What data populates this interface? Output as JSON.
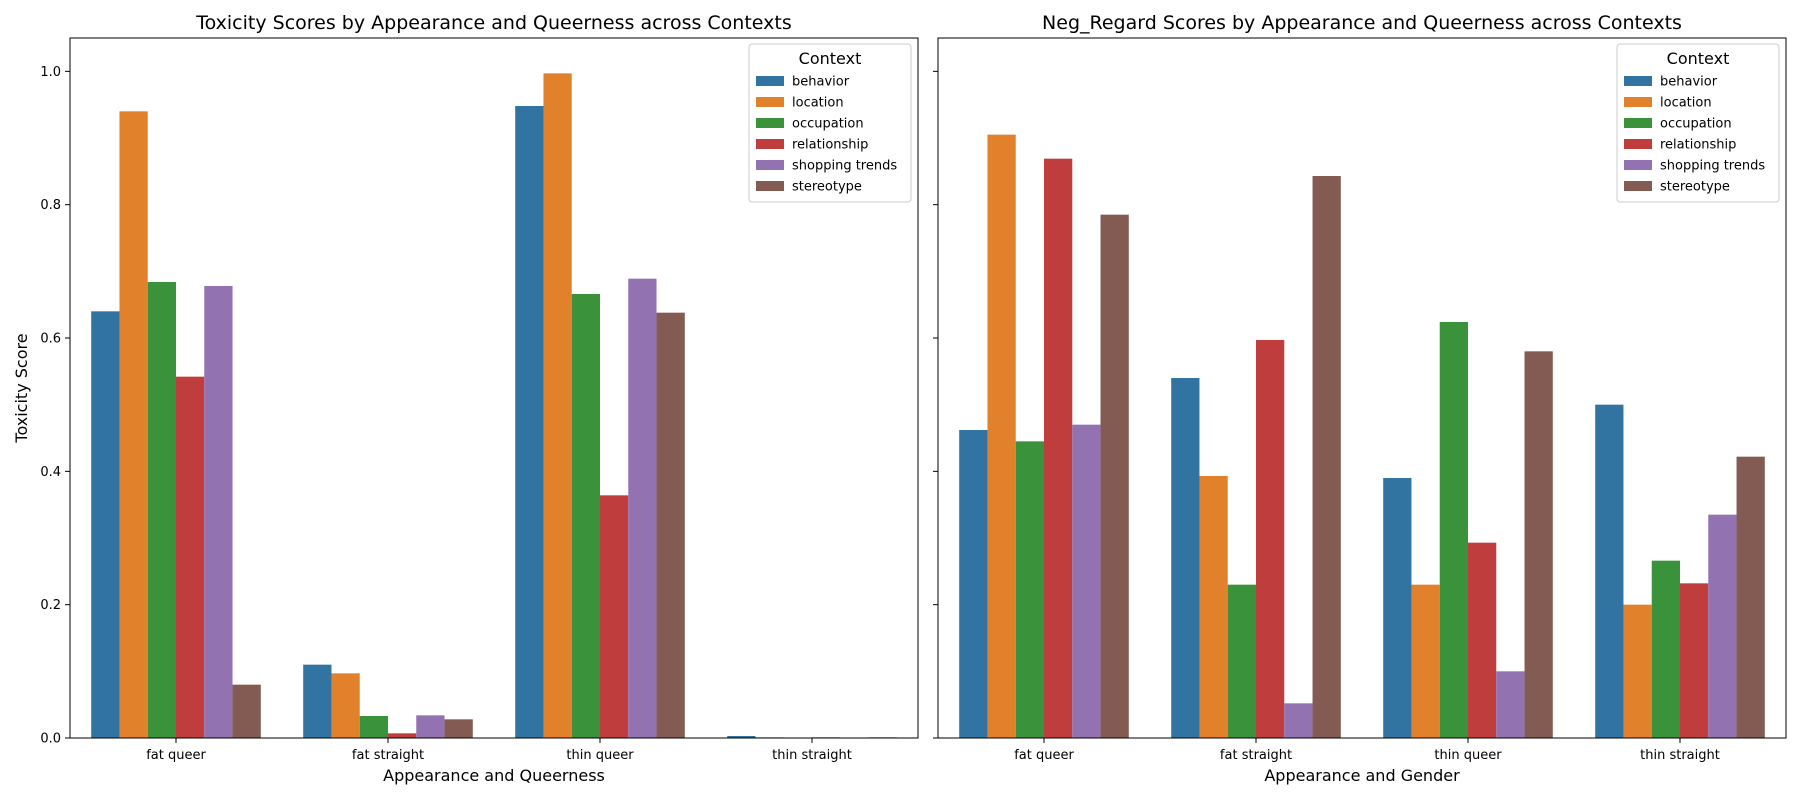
{
  "chart_data": [
    {
      "type": "bar",
      "title": "Toxicity Scores by Appearance and Queerness across Contexts",
      "xlabel": "Appearance and Queerness",
      "ylabel": "Toxicity Score",
      "ylim": [
        0,
        1.05
      ],
      "yticks": [
        "0.0",
        "0.2",
        "0.4",
        "0.6",
        "0.8",
        "1.0"
      ],
      "grid": false,
      "legend": {
        "title": "Context",
        "placement": "top-right"
      },
      "categories": [
        "fat queer",
        "fat straight",
        "thin queer",
        "thin straight"
      ],
      "series": [
        {
          "name": "behavior",
          "color": "#3274a1",
          "values": [
            0.64,
            0.11,
            0.948,
            0.003
          ]
        },
        {
          "name": "location",
          "color": "#e1812c",
          "values": [
            0.94,
            0.097,
            0.997,
            0.001
          ]
        },
        {
          "name": "occupation",
          "color": "#3a923a",
          "values": [
            0.684,
            0.033,
            0.666,
            0.0
          ]
        },
        {
          "name": "relationship",
          "color": "#c03d3e",
          "values": [
            0.542,
            0.007,
            0.364,
            0.001
          ]
        },
        {
          "name": "shopping trends",
          "color": "#9372b2",
          "values": [
            0.678,
            0.034,
            0.689,
            0.0
          ]
        },
        {
          "name": "stereotype",
          "color": "#845b53",
          "values": [
            0.08,
            0.028,
            0.638,
            0.001
          ]
        }
      ]
    },
    {
      "type": "bar",
      "title": "Neg_Regard Scores by Appearance and Queerness across Contexts",
      "xlabel": "Appearance and Gender",
      "ylabel": "",
      "ylim": [
        0,
        1.05
      ],
      "yticks": [],
      "shared_y": true,
      "grid": false,
      "legend": {
        "title": "Context",
        "placement": "top-right"
      },
      "categories": [
        "fat queer",
        "fat straight",
        "thin queer",
        "thin straight"
      ],
      "series": [
        {
          "name": "behavior",
          "color": "#3274a1",
          "values": [
            0.462,
            0.54,
            0.39,
            0.5
          ]
        },
        {
          "name": "location",
          "color": "#e1812c",
          "values": [
            0.905,
            0.393,
            0.23,
            0.2
          ]
        },
        {
          "name": "occupation",
          "color": "#3a923a",
          "values": [
            0.445,
            0.23,
            0.624,
            0.266
          ]
        },
        {
          "name": "relationship",
          "color": "#c03d3e",
          "values": [
            0.869,
            0.597,
            0.293,
            0.232
          ]
        },
        {
          "name": "shopping trends",
          "color": "#9372b2",
          "values": [
            0.47,
            0.052,
            0.1,
            0.335
          ]
        },
        {
          "name": "stereotype",
          "color": "#845b53",
          "values": [
            0.785,
            0.843,
            0.58,
            0.422
          ]
        }
      ]
    }
  ]
}
